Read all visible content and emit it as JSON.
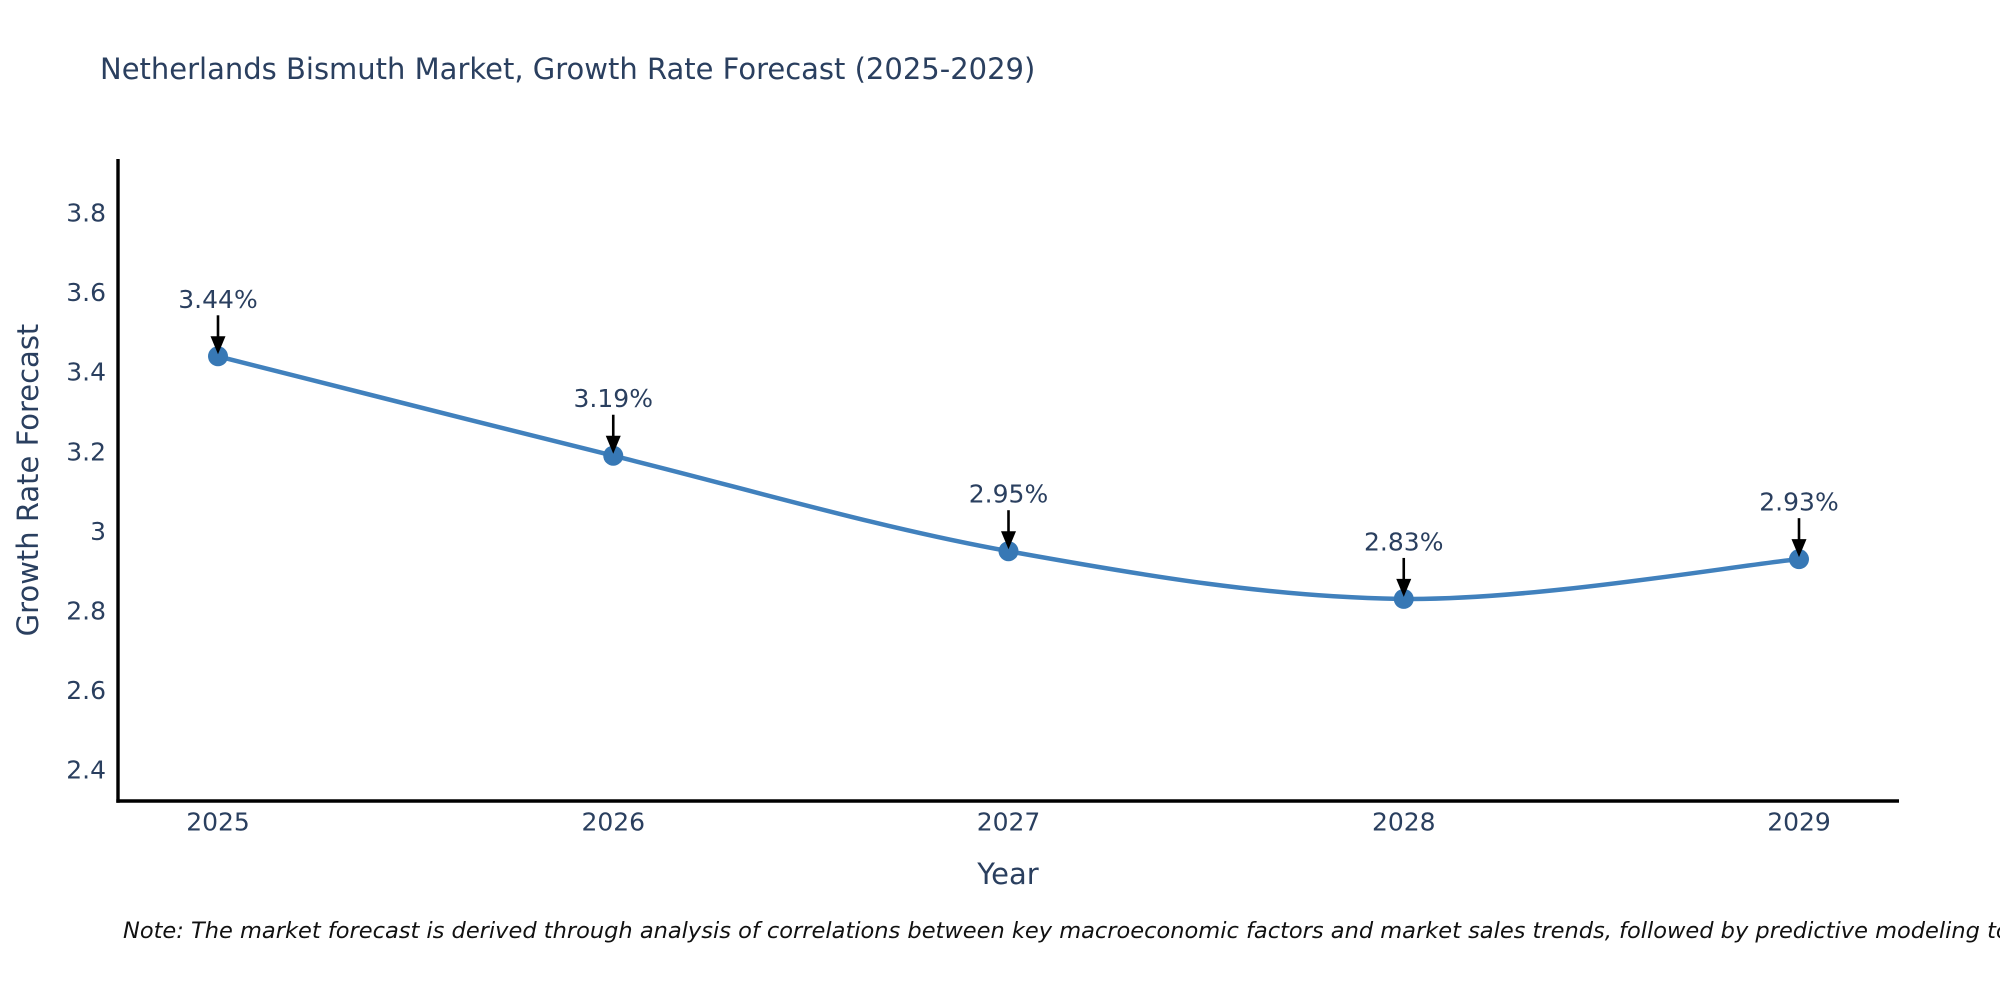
{
  "page": {
    "note": "Note: The market forecast is derived through analysis of correlations between key macroeconomic factors and market sales trends, followed by predictive modeling to project future sales"
  },
  "chart_data": {
    "type": "line",
    "title": "Netherlands Bismuth Market, Growth Rate Forecast (2025-2029)",
    "xlabel": "Year",
    "ylabel": "Growth Rate Forecast",
    "x": [
      "2025",
      "2026",
      "2027",
      "2028",
      "2029"
    ],
    "values": [
      3.44,
      3.19,
      2.95,
      2.83,
      2.93
    ],
    "point_labels": [
      "3.44%",
      "3.19%",
      "2.95%",
      "2.83%",
      "2.93%"
    ],
    "ytick_labels": [
      "3.8",
      "3.6",
      "3.4",
      "3.2",
      "3",
      "2.8",
      "2.6",
      "2.4"
    ],
    "yticks": [
      3.8,
      3.6,
      3.4,
      3.2,
      3.0,
      2.8,
      2.6,
      2.4
    ],
    "ylim": [
      2.322,
      3.936
    ],
    "line_shape": "spline",
    "grid": false,
    "legend": "none",
    "marker_style": "circle",
    "annotation_arrows": true,
    "colors": {
      "line": "#4181bd",
      "marker": "#3778b5",
      "axis": "#000000",
      "label_text": "#2a3f5f",
      "arrow": "#000000",
      "note_text": "#111111",
      "background": "#ffffff"
    }
  }
}
